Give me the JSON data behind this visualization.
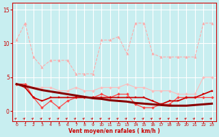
{
  "xlabel": "Vent moyen/en rafales ( km/h )",
  "xlim": [
    -0.5,
    23.5
  ],
  "ylim": [
    -1.5,
    16
  ],
  "yticks": [
    0,
    5,
    10,
    15
  ],
  "xticks": [
    0,
    1,
    2,
    3,
    4,
    5,
    6,
    7,
    8,
    9,
    10,
    11,
    12,
    13,
    14,
    15,
    16,
    17,
    18,
    19,
    20,
    21,
    22,
    23
  ],
  "bg_color": "#c8eef0",
  "grid_color": "#ffffff",
  "series": [
    {
      "name": "rafales_light1",
      "x": [
        0,
        1,
        2,
        3,
        4,
        5,
        6,
        7,
        8,
        9,
        10,
        11,
        12,
        13,
        14,
        15,
        16,
        17,
        18,
        19,
        20,
        21,
        22,
        23
      ],
      "y": [
        10.5,
        13.0,
        8.0,
        6.5,
        7.5,
        7.5,
        7.5,
        5.5,
        5.5,
        5.5,
        10.5,
        10.5,
        11.0,
        8.5,
        13.0,
        13.0,
        8.5,
        8.0,
        8.0,
        8.0,
        8.0,
        8.0,
        13.0,
        13.0
      ],
      "color": "#ffaaaa",
      "lw": 0.8,
      "marker": "^",
      "ms": 2.5,
      "linestyle": "--"
    },
    {
      "name": "rafales_light2",
      "x": [
        0,
        1,
        2,
        3,
        4,
        5,
        6,
        7,
        8,
        9,
        10,
        11,
        12,
        13,
        14,
        15,
        16,
        17,
        18,
        19,
        20,
        21,
        22,
        23
      ],
      "y": [
        4.0,
        4.0,
        3.5,
        3.5,
        3.5,
        3.0,
        3.0,
        3.5,
        3.0,
        3.0,
        3.5,
        3.5,
        3.5,
        4.0,
        3.5,
        3.5,
        3.0,
        3.0,
        3.0,
        2.5,
        2.5,
        2.5,
        5.0,
        5.0
      ],
      "color": "#ffbbbb",
      "lw": 0.8,
      "marker": "D",
      "ms": 2,
      "linestyle": "-"
    },
    {
      "name": "moyen_dark",
      "x": [
        0,
        1,
        2,
        3,
        4,
        5,
        6,
        7,
        8,
        9,
        10,
        11,
        12,
        13,
        14,
        15,
        16,
        17,
        18,
        19,
        20,
        21,
        22,
        23
      ],
      "y": [
        4.0,
        4.0,
        2.0,
        0.5,
        1.5,
        0.5,
        1.5,
        2.0,
        2.0,
        2.0,
        2.5,
        2.0,
        2.5,
        2.5,
        1.0,
        0.5,
        0.5,
        1.0,
        1.0,
        2.0,
        2.0,
        2.0,
        2.0,
        2.0
      ],
      "color": "#ff4444",
      "lw": 0.9,
      "marker": "D",
      "ms": 2,
      "linestyle": "-"
    },
    {
      "name": "moyen_mid",
      "x": [
        0,
        1,
        2,
        3,
        4,
        5,
        6,
        7,
        8,
        9,
        10,
        11,
        12,
        13,
        14,
        15,
        16,
        17,
        18,
        19,
        20,
        21,
        22,
        23
      ],
      "y": [
        4.0,
        3.5,
        2.0,
        1.5,
        2.0,
        2.0,
        2.0,
        2.0,
        2.0,
        2.0,
        2.0,
        2.0,
        2.0,
        2.0,
        2.0,
        2.0,
        1.5,
        1.0,
        1.5,
        1.5,
        2.0,
        2.0,
        2.5,
        3.0
      ],
      "color": "#cc0000",
      "lw": 1.3,
      "marker": "s",
      "ms": 2,
      "linestyle": "-"
    },
    {
      "name": "trend_line",
      "x": [
        0,
        1,
        2,
        3,
        4,
        5,
        6,
        7,
        8,
        9,
        10,
        11,
        12,
        13,
        14,
        15,
        16,
        17,
        18,
        19,
        20,
        21,
        22,
        23
      ],
      "y": [
        4.0,
        3.7,
        3.4,
        3.1,
        2.9,
        2.7,
        2.5,
        2.3,
        2.1,
        1.9,
        1.8,
        1.6,
        1.5,
        1.4,
        1.2,
        1.1,
        1.0,
        0.9,
        0.8,
        0.8,
        0.8,
        0.9,
        1.0,
        1.1
      ],
      "color": "#880000",
      "lw": 2.2,
      "marker": null,
      "ms": 0,
      "linestyle": "-"
    }
  ],
  "wind_arrows": {
    "x": [
      0,
      1,
      2,
      3,
      4,
      5,
      6,
      7,
      8,
      9,
      10,
      11,
      12,
      13,
      14,
      15,
      16,
      17,
      18,
      19,
      20,
      21,
      22,
      23
    ],
    "y": -1.1,
    "color": "#cc0000",
    "size": 4.5
  }
}
